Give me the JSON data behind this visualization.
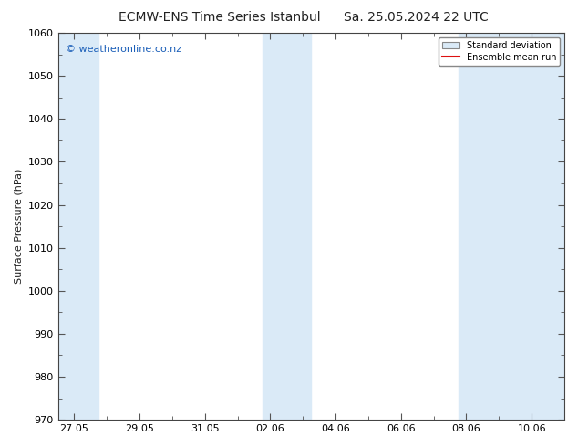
{
  "title_left": "ECMW-ENS Time Series Istanbul",
  "title_right": "Sa. 25.05.2024 22 UTC",
  "ylabel": "Surface Pressure (hPa)",
  "ylim": [
    970,
    1060
  ],
  "yticks": [
    970,
    980,
    990,
    1000,
    1010,
    1020,
    1030,
    1040,
    1050,
    1060
  ],
  "background_color": "#ffffff",
  "plot_bg_color": "#ffffff",
  "watermark": "© weatheronline.co.nz",
  "watermark_color": "#1a5eb8",
  "shaded_band_color": "#daeaf7",
  "legend_std_label": "Standard deviation",
  "legend_mean_label": "Ensemble mean run",
  "legend_mean_color": "#dd1111",
  "x_tick_labels": [
    "27.05",
    "29.05",
    "31.05",
    "02.06",
    "04.06",
    "06.06",
    "08.06",
    "10.06"
  ],
  "x_tick_positions": [
    0,
    2,
    4,
    6,
    8,
    10,
    12,
    14
  ],
  "xlim": [
    -0.5,
    15.0
  ],
  "shaded_bands": [
    {
      "start": -0.5,
      "end": 0.75
    },
    {
      "start": 5.75,
      "end": 7.25
    },
    {
      "start": 11.75,
      "end": 15.0
    }
  ],
  "title_fontsize": 10,
  "label_fontsize": 8,
  "tick_fontsize": 8,
  "watermark_fontsize": 8
}
